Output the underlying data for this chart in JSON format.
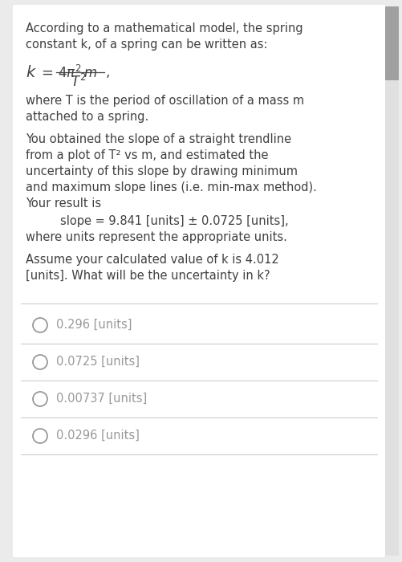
{
  "bg_color": "#ebebeb",
  "panel_color": "#ffffff",
  "text_color": "#404040",
  "light_gray": "#999999",
  "divider_color": "#cccccc",
  "para1_line1": "According to a mathematical model, the spring",
  "para1_line2": "constant k, of a spring can be written as:",
  "para2_line1": "where T is the period of oscillation of a mass m",
  "para2_line2": "attached to a spring.",
  "para3_line1": "You obtained the slope of a straight trendline",
  "para3_line2": "from a plot of T² vs m, and estimated the",
  "para3_line3": "uncertainty of this slope by drawing minimum",
  "para3_line4": "and maximum slope lines (i.e. min-max method).",
  "para3_line5": "Your result is",
  "slope_line": "slope = 9.841 [units] ± 0.0725 [units],",
  "para4_line1": "where units represent the appropriate units.",
  "para5_line1": "Assume your calculated value of k is 4.012",
  "para5_line2": "[units]. What will be the uncertainty in k?",
  "choices": [
    "0.296 [units]",
    "0.0725 [units]",
    "0.00737 [units]",
    "0.0296 [units]"
  ],
  "font_size_body": 10.5,
  "font_size_formula": 12,
  "scrollbar_color": "#c8c8c8",
  "scrollbar_thumb": "#a0a0a0"
}
